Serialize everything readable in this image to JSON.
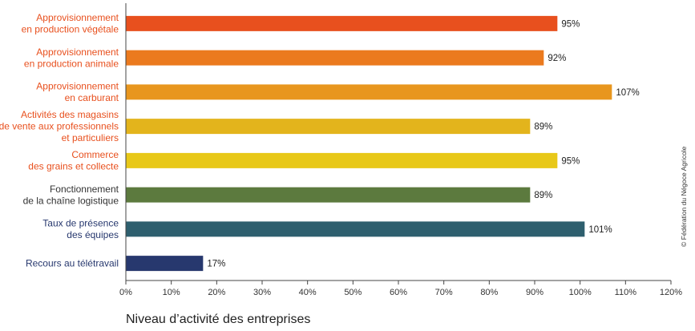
{
  "chart_data": {
    "type": "bar",
    "orientation": "horizontal",
    "categories": [
      [
        "Approvisionnement",
        "en production végétale"
      ],
      [
        "Approvisionnement",
        "en production animale"
      ],
      [
        "Approvisionnement",
        "en carburant"
      ],
      [
        "Activités des magasins",
        "de vente aux professionnels",
        "et particuliers"
      ],
      [
        "Commerce",
        "des grains et collecte"
      ],
      [
        "Fonctionnement",
        "de la chaîne logistique"
      ],
      [
        "Taux de présence",
        "des équipes"
      ],
      [
        "Recours au télétravail"
      ]
    ],
    "values": [
      95,
      92,
      107,
      89,
      95,
      89,
      101,
      17
    ],
    "value_labels": [
      "95%",
      "92%",
      "107%",
      "89%",
      "95%",
      "89%",
      "101%",
      "17%"
    ],
    "bar_colors": [
      "#e8501e",
      "#eb7a1e",
      "#e8961e",
      "#e3b41c",
      "#e8c818",
      "#5c7a3e",
      "#2e5f6e",
      "#27386e"
    ],
    "label_colors": [
      "#e8501e",
      "#e8501e",
      "#e8501e",
      "#e8501e",
      "#e8501e",
      "#333333",
      "#27386e",
      "#27386e"
    ],
    "xlim": [
      0,
      120
    ],
    "xticks": [
      0,
      10,
      20,
      30,
      40,
      50,
      60,
      70,
      80,
      90,
      100,
      110,
      120
    ],
    "xtick_labels": [
      "0%",
      "10%",
      "20%",
      "30%",
      "40%",
      "50%",
      "60%",
      "70%",
      "80%",
      "90%",
      "100%",
      "110%",
      "120%"
    ],
    "xlabel": "Niveau d’activité des entreprises",
    "grid": false,
    "legend": "none"
  },
  "credit": "© Fédération du Négoce Agricole"
}
